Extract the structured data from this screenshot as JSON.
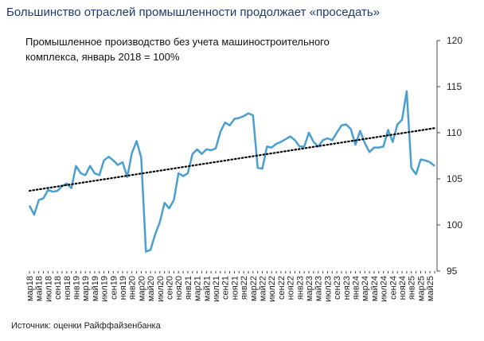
{
  "chart_data": {
    "type": "line",
    "title": "Большинство отраслей промышленности продолжает «проседать»",
    "subtitle": [
      "Промышленное производство без учета машиностроительного",
      "комплекса, январь 2018 = 100%"
    ],
    "source": "Источник: оценки Райффайзенбанка",
    "categories": [
      "мар18",
      null,
      "май18",
      null,
      "июл18",
      null,
      "сен18",
      null,
      "ноя18",
      null,
      "янв19",
      null,
      "мар19",
      null,
      "май19",
      null,
      "июл19",
      null,
      "сен19",
      null,
      "ноя19",
      null,
      "янв20",
      null,
      "мар20",
      null,
      "май20",
      null,
      "июл20",
      null,
      "сен20",
      null,
      "ноя20",
      null,
      "янв21",
      null,
      "мар21",
      null,
      "май21",
      null,
      "июл21",
      null,
      "сен21",
      null,
      "ноя21",
      null,
      "янв22",
      null,
      "мар22",
      null,
      "май22",
      null,
      "июл22",
      null,
      "сен22",
      null,
      "ноя22",
      null,
      "янв23",
      null,
      "мар23",
      null,
      "май23",
      null,
      "июл23",
      null,
      "сен23",
      null,
      "ноя23",
      null,
      "янв24",
      null,
      "мар24",
      null,
      "май24",
      null,
      "июл24",
      null,
      "сен24",
      null,
      "ноя24",
      null,
      "янв25",
      null,
      "мар25",
      null,
      "май25",
      null
    ],
    "values": [
      102.1,
      101.1,
      102.7,
      102.9,
      103.8,
      103.6,
      103.7,
      104.2,
      104.5,
      104.0,
      106.4,
      105.6,
      105.4,
      106.4,
      105.6,
      105.4,
      107.0,
      107.4,
      107.0,
      106.5,
      106.8,
      105.2,
      107.8,
      109.1,
      107.3,
      97.1,
      97.3,
      99.0,
      100.3,
      102.4,
      101.8,
      102.7,
      105.6,
      105.3,
      105.6,
      107.7,
      108.2,
      107.7,
      108.2,
      108.1,
      108.3,
      110.1,
      111.1,
      110.8,
      111.5,
      111.6,
      111.8,
      112.1,
      111.9,
      106.2,
      106.1,
      108.5,
      108.4,
      108.8,
      109.0,
      109.3,
      109.6,
      109.2,
      108.5,
      108.5,
      110.0,
      109.0,
      108.5,
      109.2,
      109.4,
      109.2,
      110.0,
      110.8,
      110.9,
      110.4,
      108.7,
      110.2,
      108.9,
      107.9,
      108.4,
      108.4,
      108.5,
      110.3,
      109.0,
      110.9,
      111.4,
      114.5,
      106.2,
      105.5,
      107.1,
      107.0,
      106.8,
      106.4
    ],
    "color": "#4a9fd2",
    "trend": {
      "values": [
        103.7,
        110.5
      ],
      "color": "#000000",
      "dash": "dotted"
    },
    "ylim": [
      95,
      120
    ],
    "yticks": [
      95,
      100,
      105,
      110,
      115,
      120
    ],
    "y_axis_side": "right",
    "grid": false
  }
}
